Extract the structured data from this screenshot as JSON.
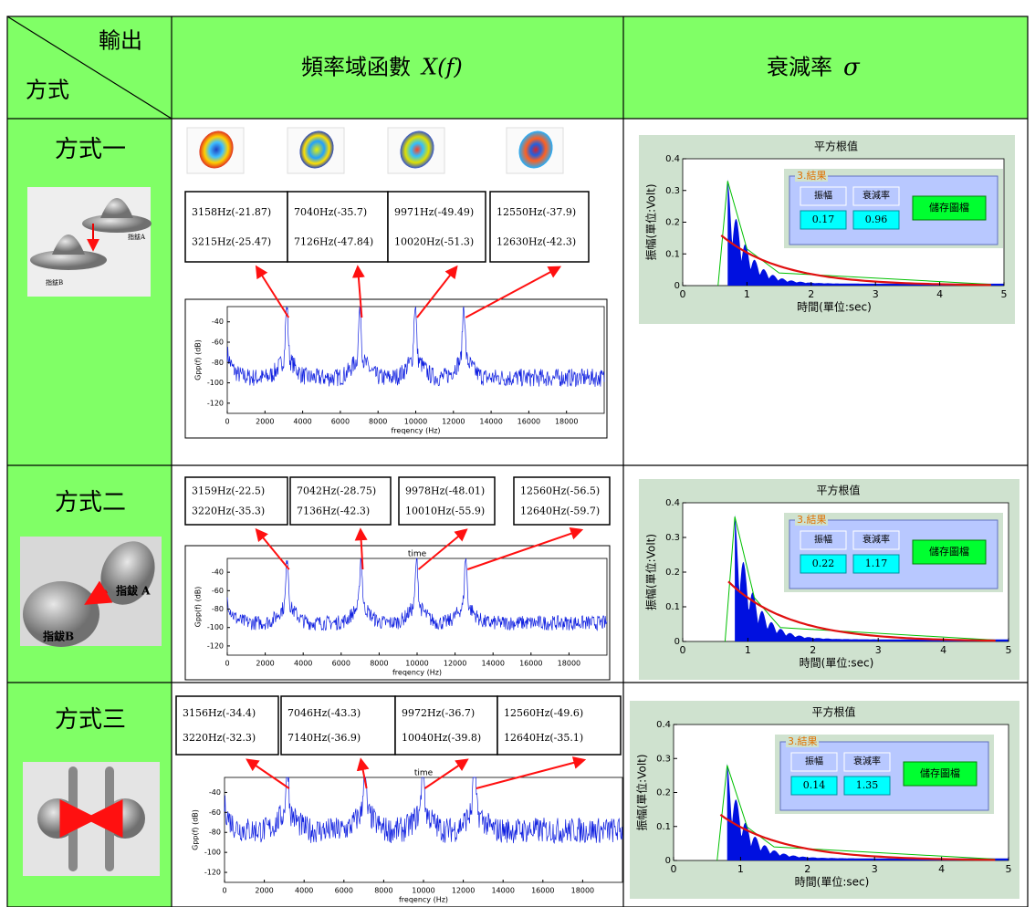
{
  "header": {
    "corner_top": "輸出",
    "corner_bottom": "方式",
    "col2": {
      "text": "頻率域函數",
      "symbol": "X(f)"
    },
    "col3": {
      "text": "衰減率",
      "symbol": "σ"
    }
  },
  "rows": [
    {
      "method": "方式一",
      "image_labels": [
        "指鈸A",
        "指鈸B"
      ],
      "peaks": [
        [
          "3158Hz(-21.87)",
          "3215Hz(-25.47)"
        ],
        [
          "7040Hz(-35.7)",
          "7126Hz(-47.84)"
        ],
        [
          "9971Hz(-49.49)",
          "10020Hz(-51.3)"
        ],
        [
          "12550Hz(-37.9)",
          "12630Hz(-42.3)"
        ]
      ],
      "spectrum": {
        "ylabel": "Gpp(f) (dB)",
        "xlabel": "freqency (Hz)",
        "xlim": [
          0,
          20000
        ],
        "ylim": [
          -130,
          -25
        ],
        "xticks": [
          0,
          2000,
          4000,
          6000,
          8000,
          10000,
          12000,
          14000,
          16000,
          18000
        ],
        "yticks": [
          -40,
          -60,
          -80,
          -100,
          -120
        ]
      },
      "decay": {
        "title": "平方根值",
        "ylabel": "振幅(單位:Volt)",
        "xlabel": "時間(單位:sec)",
        "xlim": [
          0,
          5
        ],
        "ylim": [
          0,
          0.4
        ],
        "xticks": [
          0,
          1,
          2,
          3,
          4,
          5
        ],
        "yticks": [
          0,
          0.1,
          0.2,
          0.3,
          0.4
        ],
        "result": {
          "title": "3.結果",
          "headers": [
            "振幅",
            "衰減率"
          ],
          "values": [
            "0.17",
            "0.96"
          ],
          "button": "儲存圖檔"
        }
      }
    },
    {
      "method": "方式二",
      "image_labels": [
        "指鈸 A",
        "指鈸B"
      ],
      "peaks": [
        [
          "3159Hz(-22.5)",
          "3220Hz(-35.3)"
        ],
        [
          "7042Hz(-28.75)",
          "7136Hz(-42.3)"
        ],
        [
          "9978Hz(-48.01)",
          "10010Hz(-55.9)"
        ],
        [
          "12560Hz(-56.5)",
          "12640Hz(-59.7)"
        ]
      ],
      "spectrum": {
        "title": "time",
        "ylabel": "Gpp(f) (dB)",
        "xlabel": "freqency (Hz)",
        "xlim": [
          0,
          20000
        ],
        "ylim": [
          -130,
          -25
        ],
        "xticks": [
          0,
          2000,
          4000,
          6000,
          8000,
          10000,
          12000,
          14000,
          16000,
          18000
        ],
        "yticks": [
          -40,
          -60,
          -80,
          -100,
          -120
        ]
      },
      "decay": {
        "title": "平方根值",
        "ylabel": "振幅(單位:Volt)",
        "xlabel": "時間(單位:sec)",
        "xlim": [
          0,
          5
        ],
        "ylim": [
          0,
          0.4
        ],
        "xticks": [
          0,
          1,
          2,
          3,
          4,
          5
        ],
        "yticks": [
          0,
          0.1,
          0.2,
          0.3,
          0.4
        ],
        "result": {
          "title": "3.結果",
          "headers": [
            "振幅",
            "衰減率"
          ],
          "values": [
            "0.22",
            "1.17"
          ],
          "button": "儲存圖檔"
        }
      }
    },
    {
      "method": "方式三",
      "image_labels": [],
      "peaks": [
        [
          "3156Hz(-34.4)",
          "3220Hz(-32.3)"
        ],
        [
          "7046Hz(-43.3)",
          "7140Hz(-36.9)"
        ],
        [
          "9972Hz(-36.7)",
          "10040Hz(-39.8)"
        ],
        [
          "12560Hz(-49.6)",
          "12640Hz(-35.1)"
        ]
      ],
      "spectrum": {
        "title": "time",
        "ylabel": "Gpp(f) (dB)",
        "xlabel": "freqency (Hz)",
        "xlim": [
          0,
          20000
        ],
        "ylim": [
          -130,
          -25
        ],
        "xticks": [
          0,
          2000,
          4000,
          6000,
          8000,
          10000,
          12000,
          14000,
          16000,
          18000
        ],
        "yticks": [
          -40,
          -60,
          -80,
          -100,
          -120
        ]
      },
      "decay": {
        "title": "平方根值",
        "ylabel": "振幅(單位:Volt)",
        "xlabel": "時間(單位:sec)",
        "xlim": [
          0,
          5
        ],
        "ylim": [
          0,
          0.4
        ],
        "xticks": [
          0,
          1,
          2,
          3,
          4,
          5
        ],
        "yticks": [
          0,
          0.1,
          0.2,
          0.3,
          0.4
        ],
        "result": {
          "title": "3.結果",
          "headers": [
            "振幅",
            "衰減率"
          ],
          "values": [
            "0.14",
            "1.35"
          ],
          "button": "儲存圖檔"
        }
      }
    }
  ]
}
